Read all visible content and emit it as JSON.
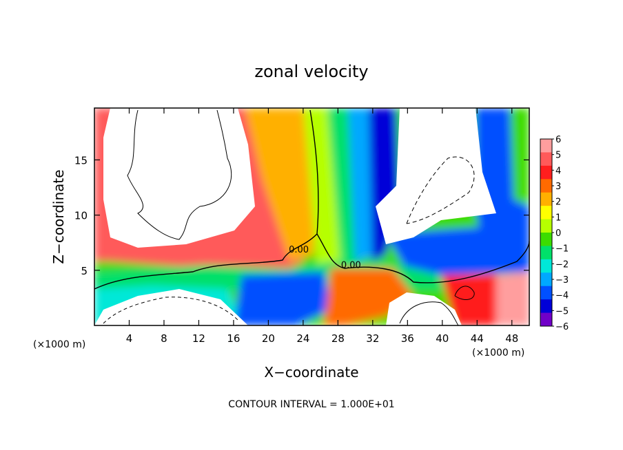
{
  "chart_data": {
    "type": "heatmap",
    "title": "zonal velocity",
    "xlabel": "X−coordinate",
    "ylabel": "Z−coordinate",
    "x_unit_label": "(×1000 m)",
    "x_unit_label_right": "(×1000 m)",
    "xlim": [
      0,
      50
    ],
    "ylim": [
      0,
      19.7
    ],
    "xticks": [
      4,
      8,
      12,
      16,
      20,
      24,
      28,
      32,
      36,
      40,
      44,
      48
    ],
    "yticks": [
      5,
      10,
      15
    ],
    "grid": false,
    "footer": "CONTOUR INTERVAL = 1.000E+01",
    "contour_labels": [
      {
        "text": "0.00",
        "x": 23.5,
        "y": 6.6
      },
      {
        "text": "0.00",
        "x": 29.5,
        "y": 5.2
      }
    ],
    "colorbar": {
      "levels": [
        6,
        5,
        4,
        3,
        2,
        1,
        0,
        -1,
        -2,
        -3,
        -4,
        -5,
        -6
      ],
      "labels": [
        "6",
        "5",
        "4",
        "3",
        "2",
        "1",
        "0",
        "−1",
        "−2",
        "−3",
        "−4",
        "−5",
        "−6"
      ],
      "colors": [
        "#ff9e9e",
        "#ff5a5a",
        "#ff1e1e",
        "#ff6a00",
        "#ffb000",
        "#ffff00",
        "#b6ff00",
        "#3cdc00",
        "#00e06a",
        "#00e8d8",
        "#00a8ff",
        "#0050ff",
        "#0000d8",
        "#7000c8"
      ]
    }
  }
}
